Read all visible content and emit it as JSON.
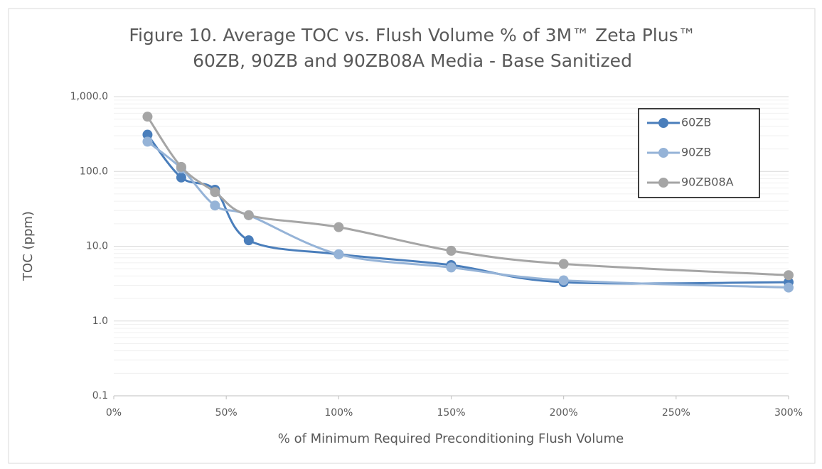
{
  "chart_data": {
    "type": "line",
    "title": [
      "Figure 10.  Average TOC vs. Flush Volume % of 3M™ Zeta Plus™",
      "60ZB, 90ZB and 90ZB08A Media - Base Sanitized"
    ],
    "xlabel": "% of Minimum Required Preconditioning Flush Volume",
    "ylabel": "TOC (ppm)",
    "x": [
      15,
      30,
      45,
      60,
      100,
      150,
      200,
      300
    ],
    "series": [
      {
        "name": "60ZB",
        "color": "#4a7ebb",
        "values": [
          310,
          83,
          57,
          12,
          7.8,
          5.6,
          3.3,
          3.3
        ]
      },
      {
        "name": "90ZB",
        "color": "#95b3d7",
        "values": [
          250,
          110,
          35,
          26,
          7.8,
          5.2,
          3.5,
          2.8
        ]
      },
      {
        "name": "90ZB08A",
        "color": "#a5a5a5",
        "values": [
          540,
          115,
          53,
          26,
          18,
          8.7,
          5.8,
          4.1
        ]
      }
    ],
    "xlim": [
      0,
      300
    ],
    "xticks": [
      {
        "value": 0,
        "label": "0%"
      },
      {
        "value": 50,
        "label": "50%"
      },
      {
        "value": 100,
        "label": "100%"
      },
      {
        "value": 150,
        "label": "150%"
      },
      {
        "value": 200,
        "label": "200%"
      },
      {
        "value": 250,
        "label": "250%"
      },
      {
        "value": 300,
        "label": "300%"
      }
    ],
    "ylim": [
      0.1,
      1000
    ],
    "yticks": [
      0.1,
      {
        "value": 1,
        "label": "1.0"
      },
      {
        "value": 10,
        "label": "10.0"
      },
      {
        "value": 100,
        "label": "100.0"
      },
      {
        "value": 1000,
        "label": "1,000.0"
      }
    ],
    "ylog": true,
    "grid": true,
    "minor_grid": true,
    "smooth": true,
    "legend": "upper right"
  }
}
